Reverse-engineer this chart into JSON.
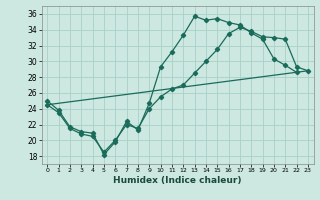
{
  "xlabel": "Humidex (Indice chaleur)",
  "background_color": "#cce8e0",
  "grid_color": "#a8d0c8",
  "line_color": "#1a6b5a",
  "xlim": [
    -0.5,
    23.5
  ],
  "ylim": [
    17,
    37
  ],
  "xticks": [
    0,
    1,
    2,
    3,
    4,
    5,
    6,
    7,
    8,
    9,
    10,
    11,
    12,
    13,
    14,
    15,
    16,
    17,
    18,
    19,
    20,
    21,
    22,
    23
  ],
  "yticks": [
    18,
    20,
    22,
    24,
    26,
    28,
    30,
    32,
    34,
    36
  ],
  "line1_x": [
    0,
    1,
    2,
    3,
    4,
    5,
    6,
    7,
    8,
    9,
    10,
    11,
    12,
    13,
    14,
    15,
    16,
    17,
    18,
    19,
    20,
    21,
    22
  ],
  "line1_y": [
    25.0,
    23.8,
    21.7,
    21.1,
    20.9,
    18.2,
    19.8,
    22.4,
    21.3,
    24.7,
    29.3,
    31.2,
    33.3,
    35.7,
    35.2,
    35.4,
    34.9,
    34.6,
    33.6,
    32.8,
    30.3,
    29.5,
    28.6
  ],
  "line2_x": [
    0,
    1,
    2,
    3,
    4,
    5,
    6,
    7,
    8,
    9,
    10,
    11,
    12,
    13,
    14,
    15,
    16,
    17,
    18,
    19,
    20,
    21,
    22,
    23
  ],
  "line2_y": [
    24.5,
    23.5,
    21.5,
    20.8,
    20.5,
    18.5,
    20.0,
    22.0,
    21.5,
    24.0,
    25.5,
    26.5,
    27.0,
    28.5,
    30.0,
    31.5,
    33.5,
    34.3,
    33.8,
    33.1,
    33.0,
    32.8,
    29.3,
    28.8
  ],
  "line3_x": [
    0,
    23
  ],
  "line3_y": [
    24.5,
    28.8
  ]
}
